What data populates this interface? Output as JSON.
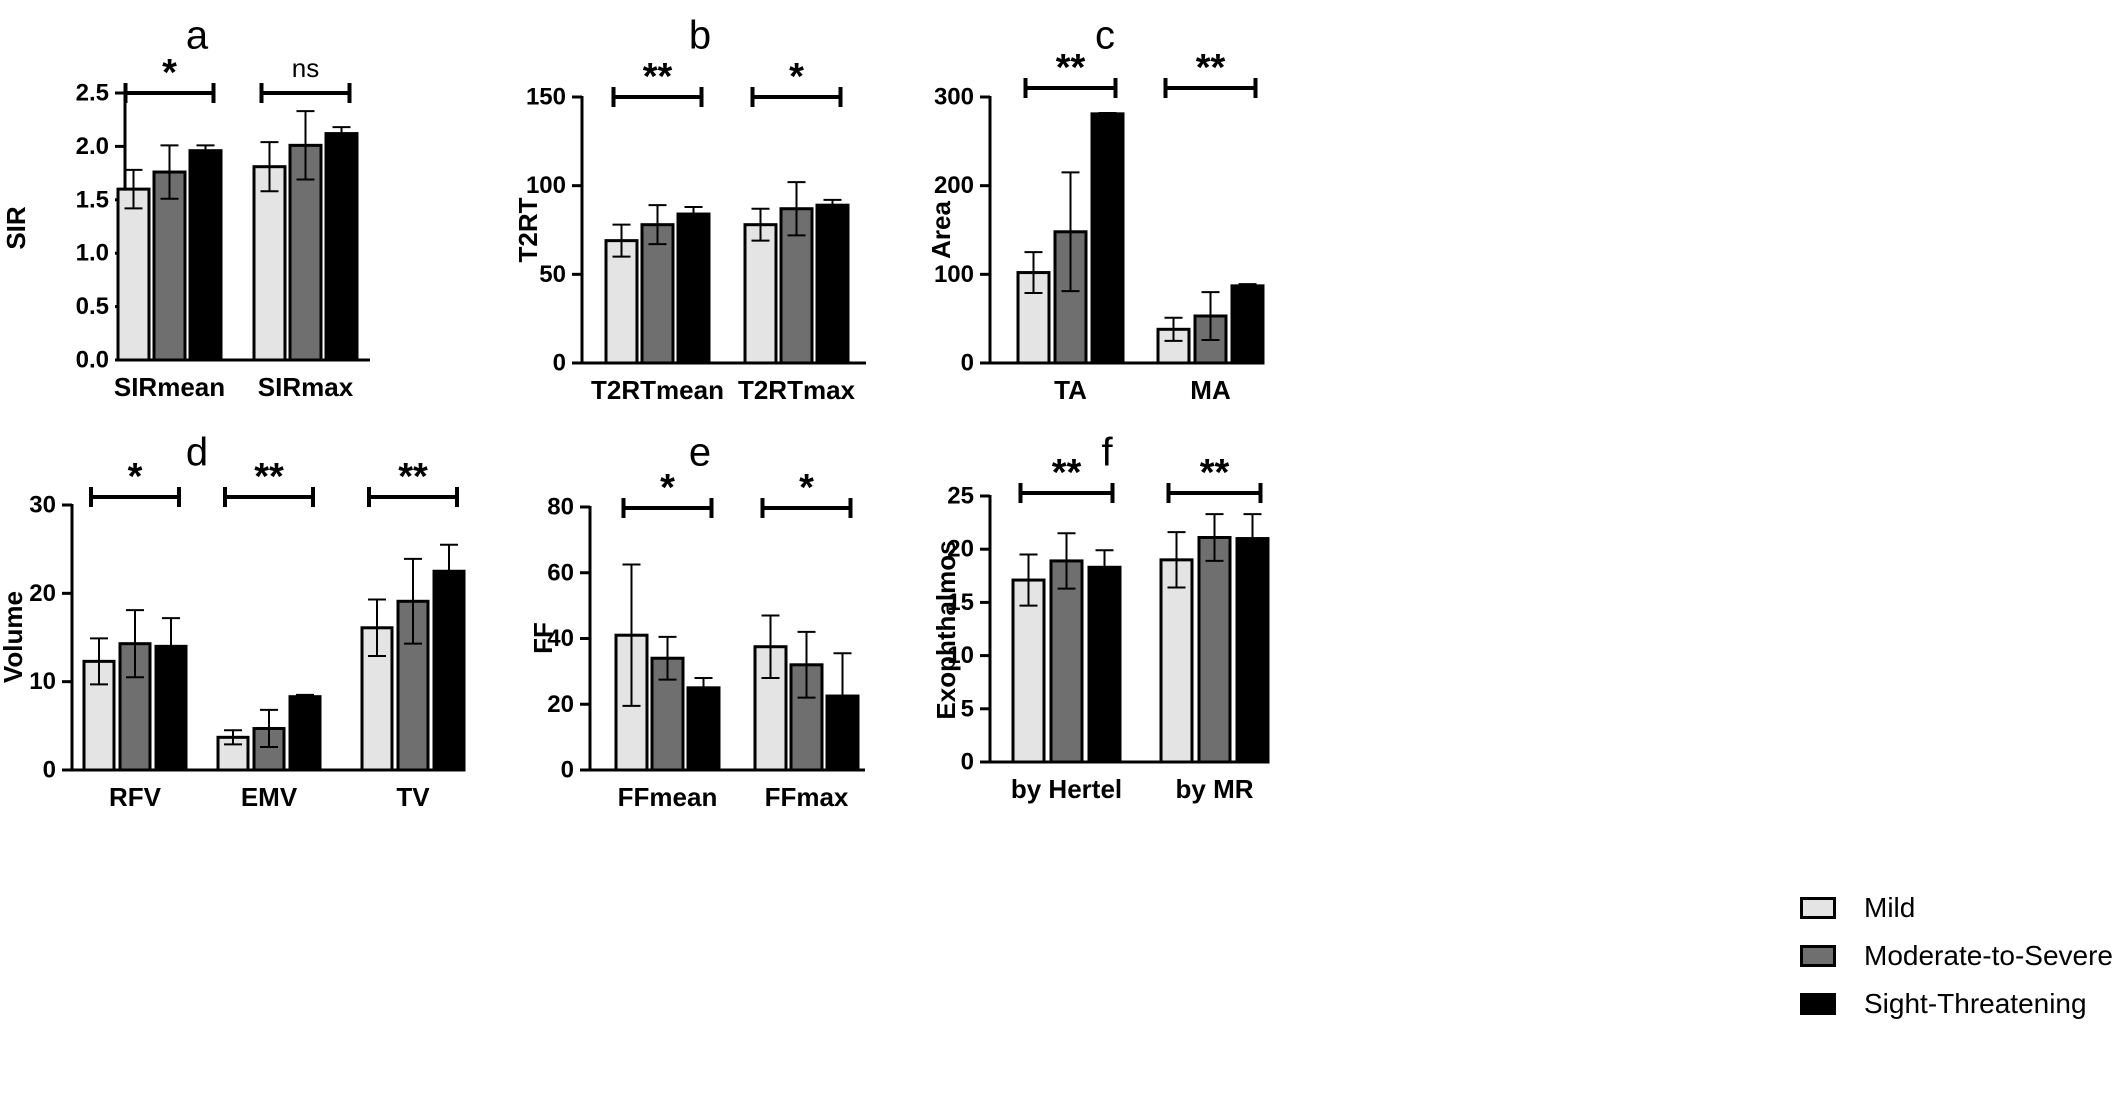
{
  "legend": {
    "items": [
      {
        "name": "Mild",
        "color": "#e4e4e4"
      },
      {
        "name": "Moderate-to-Severe",
        "color": "#6f6f6f"
      },
      {
        "name": "Sight-Threatening",
        "color": "#000000"
      }
    ]
  },
  "chart_data": [
    {
      "panel": "a",
      "type": "bar",
      "ylabel": "SIR",
      "ylim": [
        0,
        2.5
      ],
      "yticks": [
        "0.0",
        "0.5",
        "1.0",
        "1.5",
        "2.0",
        "2.5"
      ],
      "categories": [
        "SIRmean",
        "SIRmax"
      ],
      "series": [
        {
          "name": "Mild",
          "values": [
            1.6,
            1.81
          ],
          "errors": [
            0.18,
            0.23
          ]
        },
        {
          "name": "Moderate-to-Severe",
          "values": [
            1.76,
            2.01
          ],
          "errors": [
            0.25,
            0.32
          ]
        },
        {
          "name": "Sight-Threatening",
          "values": [
            1.96,
            2.12
          ],
          "errors": [
            0.05,
            0.06
          ]
        }
      ],
      "significance": [
        "*",
        "ns"
      ]
    },
    {
      "panel": "b",
      "type": "bar",
      "ylabel": "T2RT",
      "ylim": [
        0,
        150
      ],
      "yticks": [
        "0",
        "50",
        "100",
        "150"
      ],
      "categories": [
        "T2RTmean",
        "T2RTmax"
      ],
      "series": [
        {
          "name": "Mild",
          "values": [
            69,
            78
          ],
          "errors": [
            9,
            9
          ]
        },
        {
          "name": "Moderate-to-Severe",
          "values": [
            78,
            87
          ],
          "errors": [
            11,
            15
          ]
        },
        {
          "name": "Sight-Threatening",
          "values": [
            84,
            89
          ],
          "errors": [
            4,
            3
          ]
        }
      ],
      "significance": [
        "**",
        "*"
      ]
    },
    {
      "panel": "c",
      "type": "bar",
      "ylabel": "Area",
      "ylim": [
        0,
        300
      ],
      "yticks": [
        "0",
        "100",
        "200",
        "300"
      ],
      "categories": [
        "TA",
        "MA"
      ],
      "series": [
        {
          "name": "Mild",
          "values": [
            102,
            38
          ],
          "errors": [
            23,
            13
          ]
        },
        {
          "name": "Moderate-to-Severe",
          "values": [
            148,
            53
          ],
          "errors": [
            67,
            27
          ]
        },
        {
          "name": "Sight-Threatening",
          "values": [
            281,
            87
          ],
          "errors": [
            1,
            2
          ]
        }
      ],
      "significance": [
        "**",
        "**"
      ]
    },
    {
      "panel": "d",
      "type": "bar",
      "ylabel": "Volume",
      "ylim": [
        0,
        30
      ],
      "yticks": [
        "0",
        "10",
        "20",
        "30"
      ],
      "categories": [
        "RFV",
        "EMV",
        "TV"
      ],
      "series": [
        {
          "name": "Mild",
          "values": [
            12.3,
            3.7,
            16.1
          ],
          "errors": [
            2.6,
            0.8,
            3.2
          ]
        },
        {
          "name": "Moderate-to-Severe",
          "values": [
            14.3,
            4.7,
            19.1
          ],
          "errors": [
            3.8,
            2.1,
            4.8
          ]
        },
        {
          "name": "Sight-Threatening",
          "values": [
            14.0,
            8.3,
            22.5
          ],
          "errors": [
            3.2,
            0.2,
            3.0
          ]
        }
      ],
      "significance": [
        "*",
        "**",
        "**"
      ]
    },
    {
      "panel": "e",
      "type": "bar",
      "ylabel": "FF",
      "ylim": [
        0,
        80
      ],
      "yticks": [
        "0",
        "20",
        "40",
        "60",
        "80"
      ],
      "categories": [
        "FFmean",
        "FFmax"
      ],
      "series": [
        {
          "name": "Mild",
          "values": [
            41,
            37.5
          ],
          "errors": [
            21.5,
            9.5
          ]
        },
        {
          "name": "Moderate-to-Severe",
          "values": [
            34,
            32
          ],
          "errors": [
            6.5,
            10
          ]
        },
        {
          "name": "Sight-Threatening",
          "values": [
            25,
            22.5
          ],
          "errors": [
            3,
            13
          ]
        }
      ],
      "significance": [
        "*",
        "*"
      ]
    },
    {
      "panel": "f",
      "type": "bar",
      "ylabel": "Exophthalmos",
      "ylim": [
        0,
        25
      ],
      "yticks": [
        "0",
        "5",
        "10",
        "15",
        "20",
        "25"
      ],
      "categories": [
        "by Hertel",
        "by MR"
      ],
      "series": [
        {
          "name": "Mild",
          "values": [
            17.1,
            19.0
          ],
          "errors": [
            2.4,
            2.6
          ]
        },
        {
          "name": "Moderate-to-Severe",
          "values": [
            18.9,
            21.1
          ],
          "errors": [
            2.6,
            2.2
          ]
        },
        {
          "name": "Sight-Threatening",
          "values": [
            18.3,
            21.0
          ],
          "errors": [
            1.6,
            2.3
          ]
        }
      ],
      "significance": [
        "**",
        "**"
      ]
    }
  ]
}
